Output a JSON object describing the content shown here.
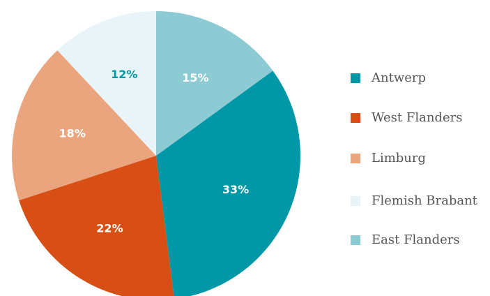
{
  "chart_data": {
    "type": "pie",
    "categories": [
      "Antwerp",
      "West Flanders",
      "Limburg",
      "Flemish Brabant",
      "East Flanders"
    ],
    "values": [
      33,
      22,
      18,
      12,
      15
    ],
    "value_labels": [
      "33%",
      "22%",
      "18%",
      "12%",
      "15%"
    ],
    "colors": [
      "#0097a7",
      "#d84f16",
      "#eba57e",
      "#e8f4f7",
      "#8ccbd3"
    ],
    "legend": "right"
  }
}
